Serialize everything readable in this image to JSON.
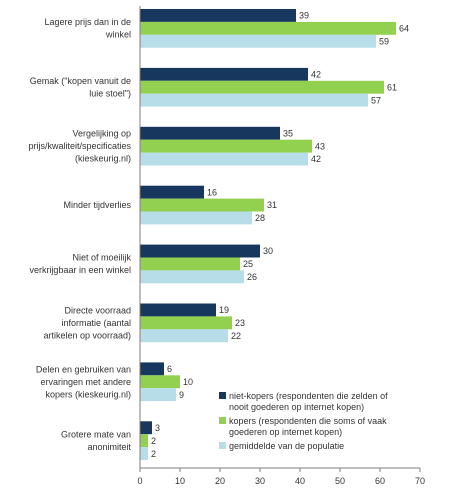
{
  "chart_data": {
    "type": "bar",
    "orientation": "horizontal",
    "categories": [
      [
        "Lagere prijs dan in de",
        "winkel"
      ],
      [
        "Gemak (\"kopen vanuit de",
        "luie stoel\")"
      ],
      [
        "Vergelijking op",
        "prijs/kwaliteit/specificaties",
        "(kieskeurig.nl)"
      ],
      [
        "Minder tijdverlies"
      ],
      [
        "Niet of moeilijk",
        "verkrijgbaar in een winkel"
      ],
      [
        "Directe voorraad",
        "informatie (aantal",
        "artikelen op voorraad)"
      ],
      [
        "Delen en gebruiken van",
        "ervaringen met andere",
        "kopers (kieskeurig.nl)"
      ],
      [
        "Grotere mate van",
        "anonimiteit"
      ]
    ],
    "series": [
      {
        "name": [
          "niet-kopers (respondenten die zelden of",
          "nooit goederen op internet kopen)"
        ],
        "color": "#17375e",
        "values": [
          39,
          42,
          35,
          16,
          30,
          19,
          6,
          3
        ]
      },
      {
        "name": [
          "kopers (respondenten die soms of vaak",
          "goederen op internet kopen)"
        ],
        "color": "#92d050",
        "values": [
          64,
          61,
          43,
          31,
          25,
          23,
          10,
          2
        ]
      },
      {
        "name": [
          "gemiddelde van de populatie"
        ],
        "color": "#b7dee8",
        "values": [
          59,
          57,
          42,
          28,
          26,
          22,
          9,
          2
        ]
      }
    ],
    "xticks": [
      "0",
      "10",
      "20",
      "30",
      "40",
      "50",
      "60",
      "70"
    ],
    "xlim": [
      0,
      70
    ],
    "grid": false,
    "legend_position": "bottom-right"
  }
}
